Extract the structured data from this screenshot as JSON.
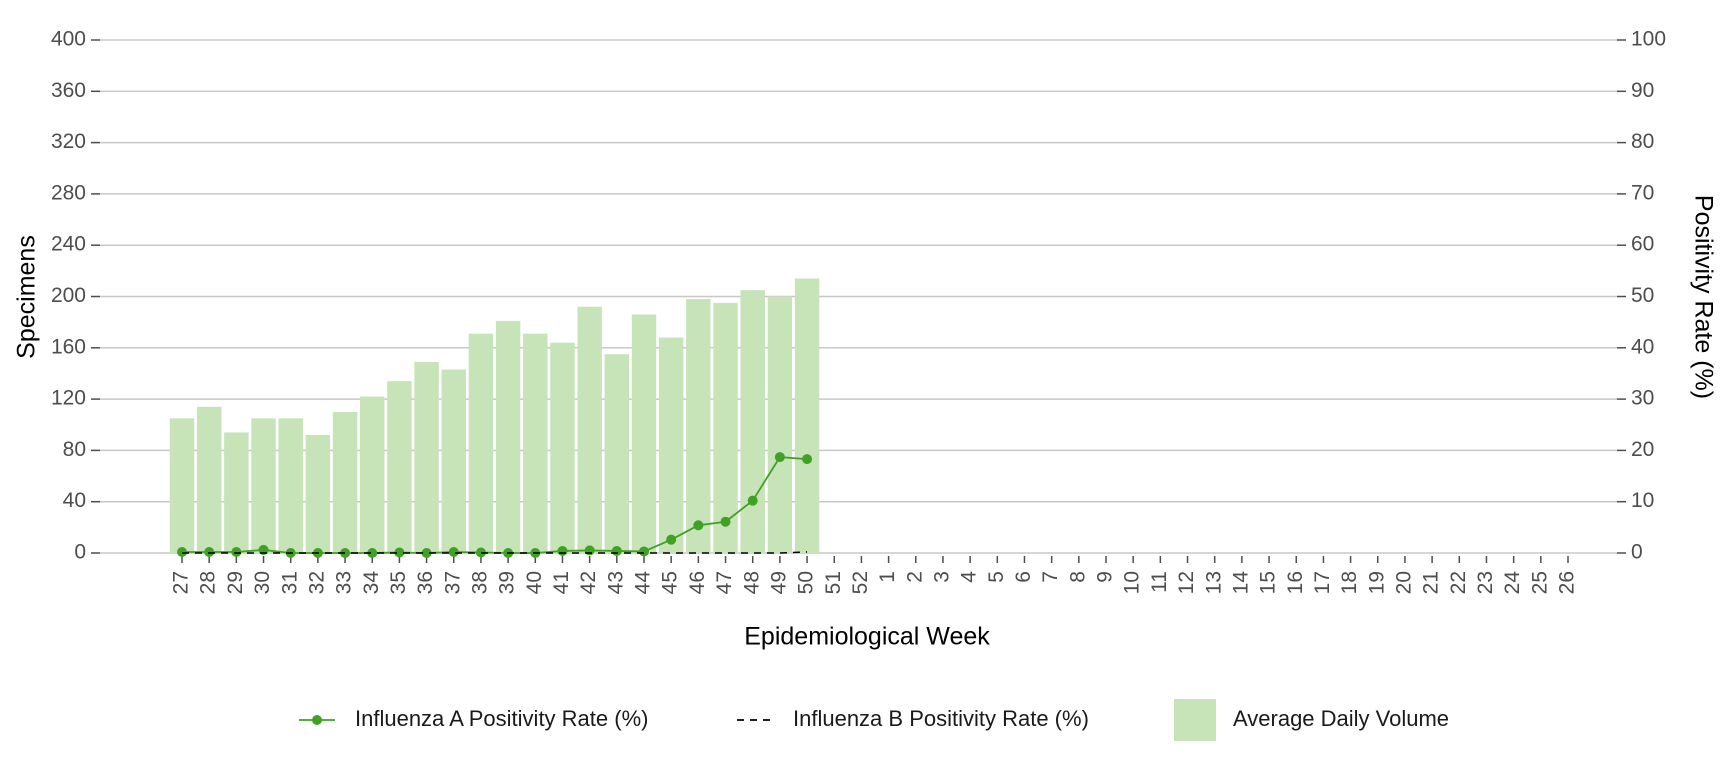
{
  "chart_data": {
    "type": "bar",
    "x_label": "Epidemiological Week",
    "y_label": "Specimens",
    "y2_label": "Positivity Rate (%)",
    "categories": [
      "27",
      "28",
      "29",
      "30",
      "31",
      "32",
      "33",
      "34",
      "35",
      "36",
      "37",
      "38",
      "39",
      "40",
      "41",
      "42",
      "43",
      "44",
      "45",
      "46",
      "47",
      "48",
      "49",
      "50",
      "51",
      "52",
      "1",
      "2",
      "3",
      "4",
      "5",
      "6",
      "7",
      "8",
      "9",
      "10",
      "11",
      "12",
      "13",
      "14",
      "15",
      "16",
      "17",
      "18",
      "19",
      "20",
      "21",
      "22",
      "23",
      "24",
      "25",
      "26"
    ],
    "ylim": [
      0,
      400
    ],
    "yticks": [
      0,
      40,
      80,
      120,
      160,
      200,
      240,
      280,
      320,
      360,
      400
    ],
    "y2lim": [
      0,
      100
    ],
    "y2ticks": [
      0,
      10,
      20,
      30,
      40,
      50,
      60,
      70,
      80,
      90,
      100
    ],
    "grid": true,
    "legend": "bottom",
    "series": [
      {
        "name": "Influenza A Positivity Rate (%)",
        "type": "line",
        "axis": "y2",
        "color": "#41a124",
        "marker": true,
        "values": [
          0.2,
          0.2,
          0.2,
          0.6,
          0,
          0,
          0,
          0,
          0.1,
          0,
          0.2,
          0.1,
          0,
          0,
          0.4,
          0.5,
          0.4,
          0.3,
          2.6,
          5.4,
          6.1,
          10.2,
          18.7,
          18.3,
          null,
          null,
          null,
          null,
          null,
          null,
          null,
          null,
          null,
          null,
          null,
          null,
          null,
          null,
          null,
          null,
          null,
          null,
          null,
          null,
          null,
          null,
          null,
          null,
          null,
          null,
          null,
          null
        ]
      },
      {
        "name": "Influenza B Positivity Rate (%)",
        "type": "line",
        "axis": "y2",
        "color": "#000000",
        "line_style": "dashed",
        "values": [
          0,
          0,
          0,
          0,
          0,
          0,
          0,
          0,
          0,
          0,
          0,
          0,
          0,
          0,
          0,
          0,
          0,
          0,
          0,
          0,
          0,
          0,
          0,
          0.2,
          null,
          null,
          null,
          null,
          null,
          null,
          null,
          null,
          null,
          null,
          null,
          null,
          null,
          null,
          null,
          null,
          null,
          null,
          null,
          null,
          null,
          null,
          null,
          null,
          null,
          null,
          null,
          null
        ]
      },
      {
        "name": "Average Daily Volume",
        "type": "bar",
        "color": "#c7e4b9",
        "values": [
          105,
          114,
          94,
          105,
          105,
          92,
          110,
          122,
          134,
          149,
          143,
          171,
          181,
          171,
          164,
          192,
          155,
          186,
          168,
          198,
          195,
          205,
          200,
          214,
          null,
          null,
          null,
          null,
          null,
          null,
          null,
          null,
          null,
          null,
          null,
          null,
          null,
          null,
          null,
          null,
          null,
          null,
          null,
          null,
          null,
          null,
          null,
          null,
          null,
          null,
          null,
          null
        ]
      }
    ]
  }
}
